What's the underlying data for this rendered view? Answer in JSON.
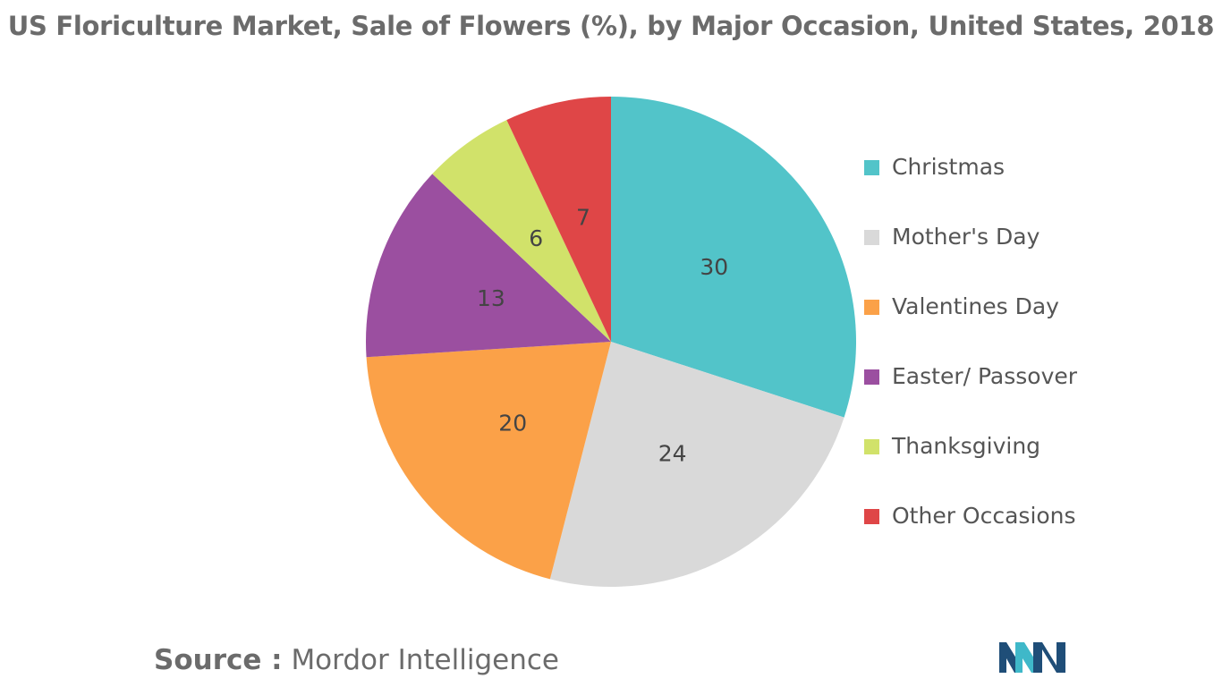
{
  "chart_data": {
    "type": "pie",
    "title": "US Floriculture Market, Sale of Flowers (%), by Major Occasion, United States, 2018",
    "categories": [
      "Christmas",
      "Mother's Day",
      "Valentines Day",
      "Easter/ Passover",
      "Thanksgiving",
      "Other Occasions"
    ],
    "values": [
      30,
      24,
      20,
      13,
      6,
      7
    ],
    "colors": [
      "#52c4c9",
      "#d9d9d9",
      "#fba148",
      "#9b4fa0",
      "#d1e26a",
      "#df4647"
    ],
    "legend_position": "right",
    "start_angle_deg": 0,
    "direction": "clockwise"
  },
  "source": {
    "label": "Source :",
    "text": "Mordor Intelligence"
  },
  "logo": {
    "icon": "mordor-intelligence-logo-icon",
    "colors": [
      "#1f4e78",
      "#3fb8c9"
    ]
  }
}
